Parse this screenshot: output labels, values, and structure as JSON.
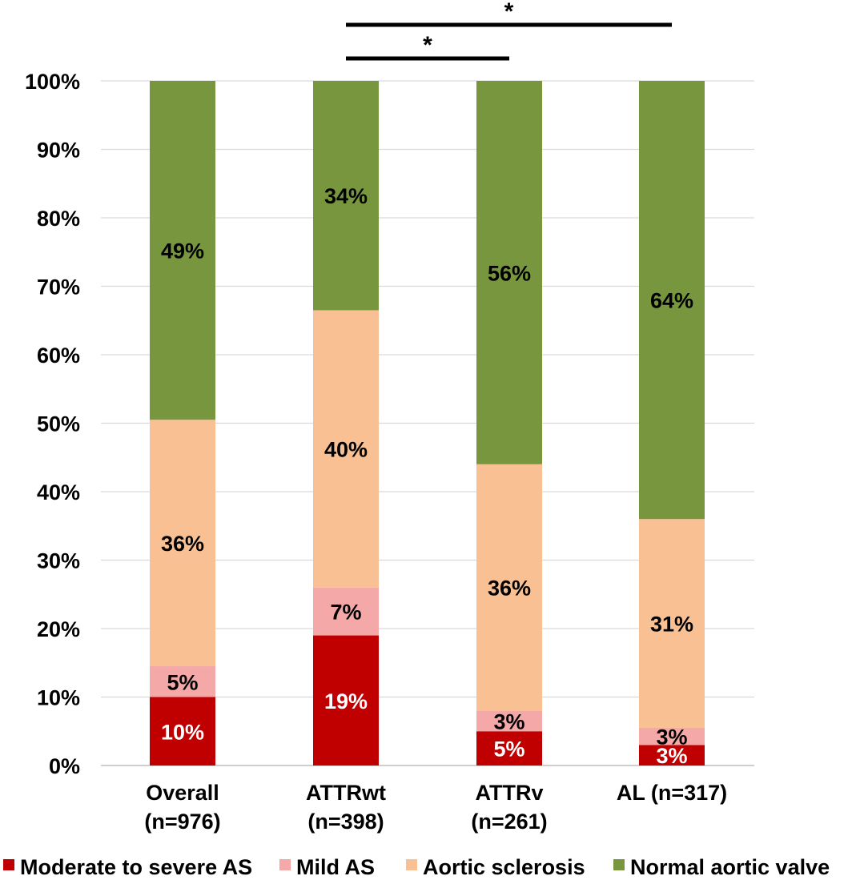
{
  "chart_data": {
    "type": "bar",
    "stacked": true,
    "categories": [
      [
        "Overall",
        "(n=976)"
      ],
      [
        "ATTRwt",
        "(n=398)"
      ],
      [
        "ATTRv",
        "(n=261)"
      ],
      [
        "AL (n=317)"
      ]
    ],
    "series": [
      {
        "name": "Moderate to severe AS",
        "color": "#c00000",
        "label_color": "#ffffff",
        "values": [
          10,
          19,
          5,
          3
        ],
        "labels": [
          "10%",
          "19%",
          "5%",
          "3%"
        ]
      },
      {
        "name": "Mild AS",
        "color": "#f4a9a8",
        "label_color": "#000000",
        "values": [
          4.5,
          7,
          3,
          2.5
        ],
        "labels": [
          "5%",
          "7%",
          "3%",
          "3%"
        ]
      },
      {
        "name": "Aortic sclerosis",
        "color": "#f8c093",
        "label_color": "#000000",
        "values": [
          36,
          40.5,
          36,
          30.5
        ],
        "labels": [
          "36%",
          "40%",
          "36%",
          "31%"
        ]
      },
      {
        "name": "Normal aortic valve",
        "color": "#77963d",
        "label_color": "#000000",
        "values": [
          49.5,
          33.5,
          56,
          64
        ],
        "labels": [
          "49%",
          "34%",
          "56%",
          "64%"
        ]
      }
    ],
    "yticks": [
      "0%",
      "10%",
      "20%",
      "30%",
      "40%",
      "50%",
      "60%",
      "70%",
      "80%",
      "90%",
      "100%"
    ],
    "ylim": [
      0,
      100
    ],
    "grid": true,
    "legend_position": "bottom",
    "significance": [
      {
        "from": 1,
        "to": 2,
        "label": "*"
      },
      {
        "from": 1,
        "to": 3,
        "label": "*"
      }
    ]
  }
}
